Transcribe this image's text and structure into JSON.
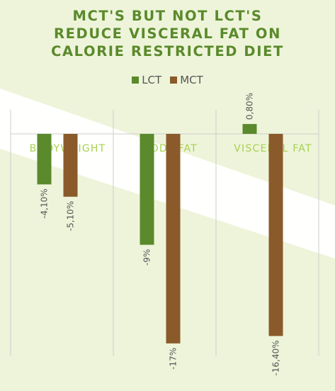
{
  "title_lines": [
    "MCT'S BUT NOT LCT'S",
    "REDUCE VISCERAL FAT ON",
    "CALORIE RESTRICTED DIET"
  ],
  "legend": [
    {
      "name": "LCT",
      "color": "#5a8a2b"
    },
    {
      "name": "MCT",
      "color": "#8a5a2a"
    }
  ],
  "colors": {
    "background": "#eef4da",
    "title": "#5a8a2b",
    "category_label": "#a6d14f",
    "value_label": "#555555",
    "grid": "#cccccc"
  },
  "chart_data": {
    "type": "bar",
    "title": "MCT'S BUT NOT LCT'S REDUCE VISCERAL FAT ON CALORIE RESTRICTED DIET",
    "categories": [
      "BODYWEIGHT",
      "BODY FAT",
      "VISCERAL FAT"
    ],
    "series": [
      {
        "name": "LCT",
        "values": [
          -4.1,
          -9,
          0.8
        ],
        "labels": [
          "-4,10%",
          "-9%",
          "0,80%"
        ]
      },
      {
        "name": "MCT",
        "values": [
          -5.1,
          -17,
          -16.4
        ],
        "labels": [
          "-5,10%",
          "-17%",
          "-16,40%"
        ]
      }
    ],
    "ylim": [
      -18,
      2
    ],
    "legend_position": "top",
    "grid": false,
    "value_label_orientation": "vertical"
  }
}
